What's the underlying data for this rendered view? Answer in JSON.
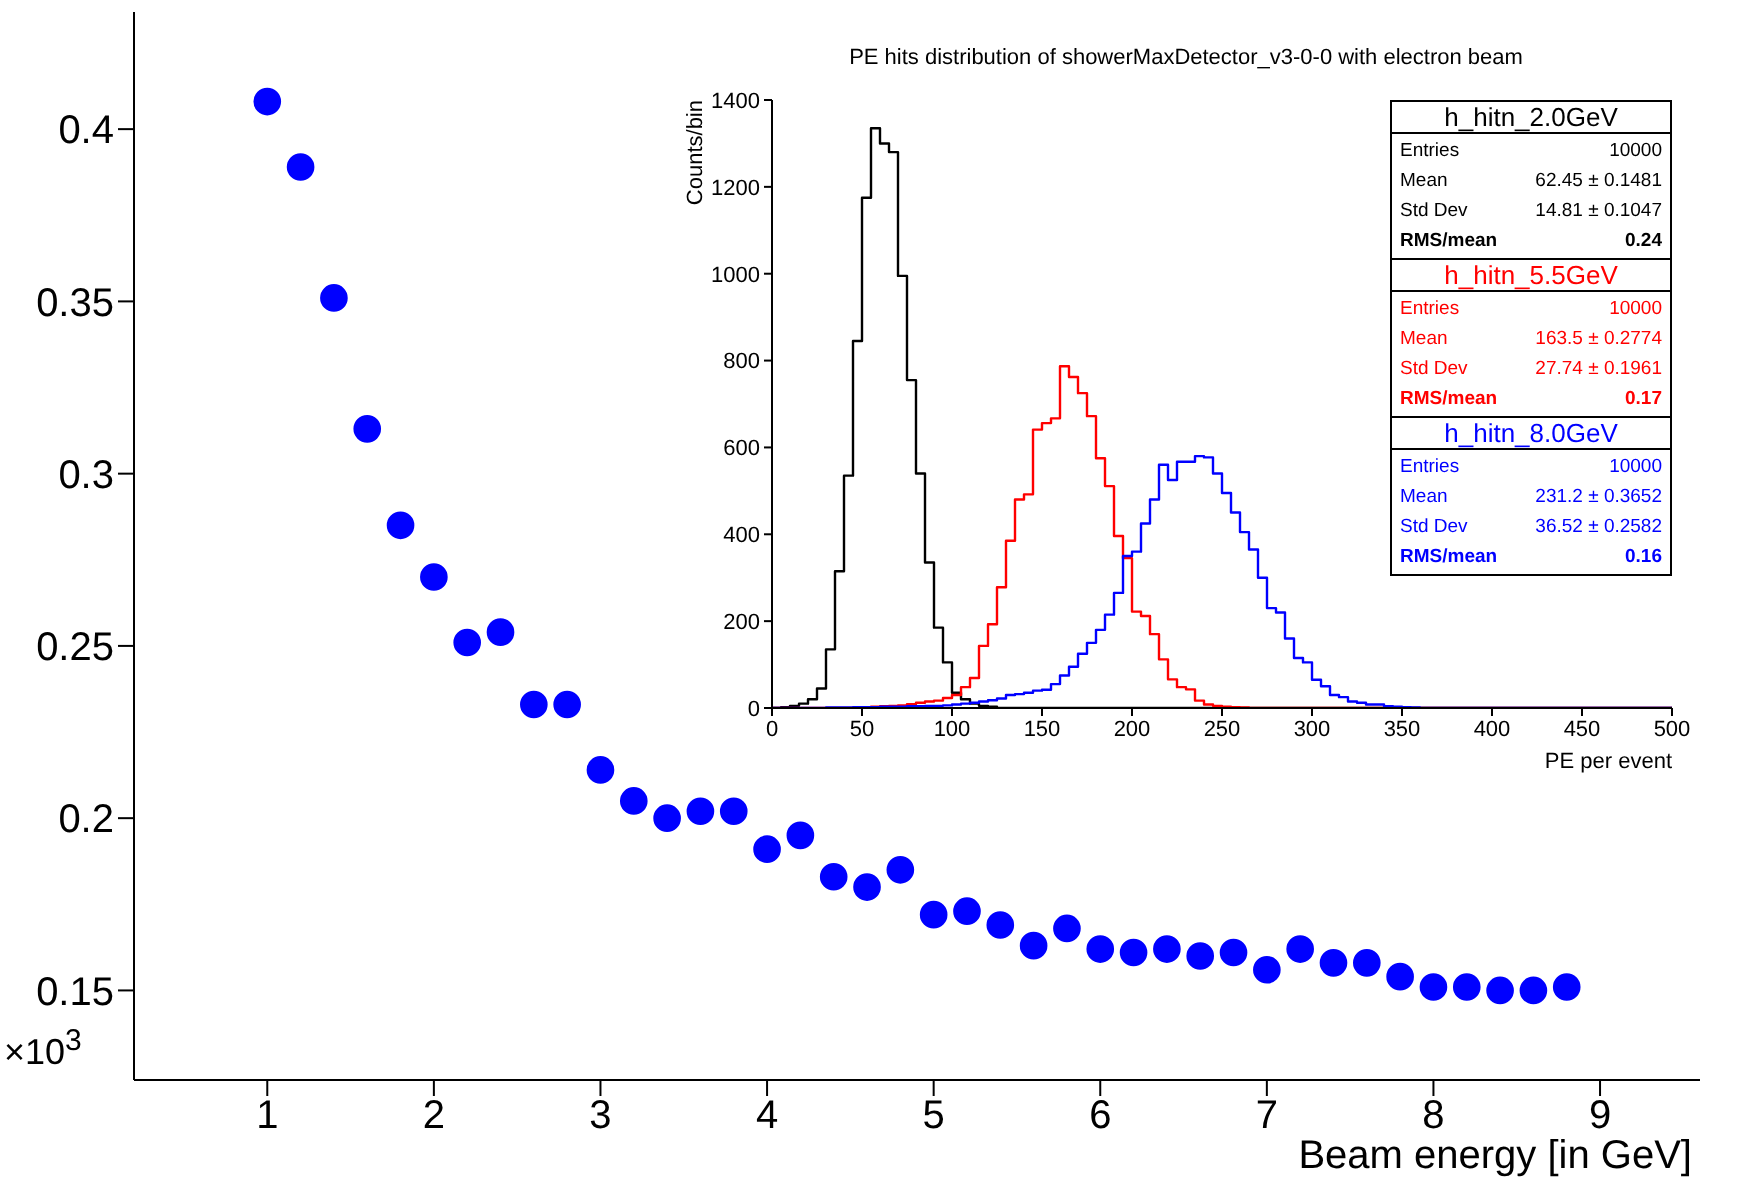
{
  "chart_data": [
    {
      "type": "scatter",
      "xlabel": "Beam energy [in GeV]",
      "marker": "circle",
      "color": "#0000ff",
      "xlim": [
        0.2,
        9.6
      ],
      "ylim": [
        0.124,
        0.434
      ],
      "xticks": [
        1,
        2,
        3,
        4,
        5,
        6,
        7,
        8,
        9
      ],
      "yticks": [
        0.15,
        0.2,
        0.25,
        0.3,
        0.35,
        0.4
      ],
      "annotations": [
        "×10$^{3}$"
      ],
      "x": [
        1.0,
        1.2,
        1.4,
        1.6,
        1.8,
        2.0,
        2.2,
        2.4,
        2.6,
        2.8,
        3.0,
        3.2,
        3.4,
        3.6,
        3.8,
        4.0,
        4.2,
        4.4,
        4.6,
        4.8,
        5.0,
        5.2,
        5.4,
        5.6,
        5.8,
        6.0,
        6.2,
        6.4,
        6.6,
        6.8,
        7.0,
        7.2,
        7.4,
        7.6,
        7.8,
        8.0,
        8.2,
        8.4,
        8.6,
        8.8
      ],
      "values": [
        0.408,
        0.389,
        0.351,
        0.313,
        0.285,
        0.27,
        0.251,
        0.254,
        0.233,
        0.233,
        0.214,
        0.205,
        0.2,
        0.202,
        0.202,
        0.191,
        0.195,
        0.183,
        0.18,
        0.185,
        0.172,
        0.173,
        0.169,
        0.163,
        0.168,
        0.162,
        0.161,
        0.162,
        0.16,
        0.161,
        0.156,
        0.162,
        0.158,
        0.158,
        0.154,
        0.151,
        0.151,
        0.15,
        0.15,
        0.151
      ]
    },
    {
      "type": "histogram",
      "title": "PE hits distribution of showerMaxDetector_v3-0-0 with electron beam",
      "xlabel": "PE per event",
      "ylabel": "Counts/bin",
      "xlim": [
        0,
        500
      ],
      "ylim": [
        0,
        1400
      ],
      "xticks": [
        0,
        50,
        100,
        150,
        200,
        250,
        300,
        350,
        400,
        450,
        500
      ],
      "yticks": [
        0,
        200,
        400,
        600,
        800,
        1000,
        1200,
        1400
      ],
      "legend": "top right",
      "annotations": [
        "Entries",
        "10000",
        "Mean",
        "62.45 ± 0.1481",
        "Std Dev",
        "14.81 ± 0.1047",
        "RMS/mean",
        "0.24",
        "Entries",
        "10000",
        "Mean",
        "163.5 ± 0.2774",
        "Std Dev",
        "27.74 ± 0.1961",
        "RMS/mean",
        "0.17",
        "Entries",
        "10000",
        "Mean",
        "231.2 ± 0.3652",
        "Std Dev",
        "36.52 ± 0.2582",
        "RMS/mean",
        "0.16"
      ],
      "bins": [
        0,
        5,
        10,
        15,
        20,
        25,
        30,
        35,
        40,
        45,
        50,
        55,
        60,
        65,
        70,
        75,
        80,
        85,
        90,
        95,
        100,
        105,
        110,
        115,
        120,
        125,
        130,
        135,
        140,
        145,
        150,
        155,
        160,
        165,
        170,
        175,
        180,
        185,
        190,
        195,
        200,
        205,
        210,
        215,
        220,
        225,
        230,
        235,
        240,
        245,
        250,
        255,
        260,
        265,
        270,
        275,
        280,
        285,
        290,
        295,
        300,
        305,
        310,
        315,
        320,
        325,
        330,
        335,
        340,
        345,
        350,
        355,
        360,
        365,
        370,
        375,
        380,
        385,
        390,
        395,
        400,
        405,
        410,
        415,
        420,
        425,
        430,
        435,
        440,
        445,
        450,
        455,
        460,
        465,
        470,
        475,
        480,
        485,
        490,
        495,
        500
      ],
      "series": [
        {
          "name": "h_hitn_2.0GeV",
          "color": "#000000",
          "values": [
            0,
            2,
            5,
            10,
            20,
            45,
            135,
            315,
            535,
            845,
            1175,
            1335,
            1300,
            1280,
            995,
            755,
            540,
            335,
            185,
            105,
            35,
            20,
            10,
            5,
            3,
            0,
            0,
            0,
            0,
            0,
            0,
            0,
            0,
            0,
            0,
            0,
            0,
            0,
            0,
            0,
            0,
            0,
            0,
            0,
            0,
            0,
            0,
            0,
            0,
            0,
            0,
            0,
            0,
            0,
            0,
            0,
            0,
            0,
            0,
            0,
            0,
            0,
            0,
            0,
            0,
            0,
            0,
            0,
            0,
            0,
            0,
            0,
            0,
            0,
            0,
            0,
            0,
            0,
            0,
            0,
            0,
            0,
            0,
            0,
            0,
            0,
            0,
            0,
            0,
            0,
            0,
            0,
            0,
            0,
            0,
            0,
            0,
            0,
            0,
            0
          ]
        },
        {
          "name": "h_hitn_5.5GeV",
          "color": "#ff0000",
          "values": [
            0,
            0,
            0,
            0,
            0,
            0,
            0,
            0,
            0,
            1,
            2,
            3,
            4,
            5,
            6,
            9,
            12,
            15,
            17,
            23,
            30,
            48,
            69,
            143,
            193,
            278,
            385,
            480,
            492,
            641,
            656,
            667,
            787,
            762,
            725,
            672,
            575,
            511,
            396,
            345,
            222,
            212,
            170,
            112,
            66,
            48,
            43,
            17,
            8,
            5,
            3,
            2,
            1,
            0,
            0,
            0,
            0,
            0,
            0,
            0,
            0,
            0,
            0,
            0,
            0,
            0,
            0,
            0,
            0,
            0,
            0,
            0,
            0,
            0,
            0,
            0,
            0,
            0,
            0,
            0,
            0,
            0,
            0,
            0,
            0,
            0,
            0,
            0,
            0,
            0,
            0,
            0,
            0,
            0,
            0,
            0,
            0,
            0,
            0,
            0
          ]
        },
        {
          "name": "h_hitn_8.0GeV",
          "color": "#0000ff",
          "values": [
            0,
            0,
            0,
            0,
            0,
            0,
            1,
            1,
            1,
            2,
            2,
            2,
            3,
            3,
            3,
            4,
            4,
            5,
            5,
            6,
            8,
            10,
            12,
            15,
            18,
            22,
            30,
            32,
            35,
            40,
            42,
            55,
            75,
            95,
            125,
            150,
            180,
            215,
            265,
            350,
            360,
            425,
            480,
            560,
            525,
            567,
            567,
            580,
            577,
            540,
            495,
            450,
            405,
            365,
            300,
            230,
            220,
            160,
            115,
            105,
            65,
            50,
            30,
            25,
            15,
            12,
            8,
            8,
            4,
            3,
            2,
            1,
            0,
            0,
            0,
            0,
            0,
            0,
            0,
            0,
            0,
            0,
            0,
            0,
            0,
            0,
            0,
            0,
            0,
            0,
            0,
            0,
            0,
            0,
            0,
            0,
            0,
            0,
            0,
            0
          ]
        }
      ]
    }
  ]
}
